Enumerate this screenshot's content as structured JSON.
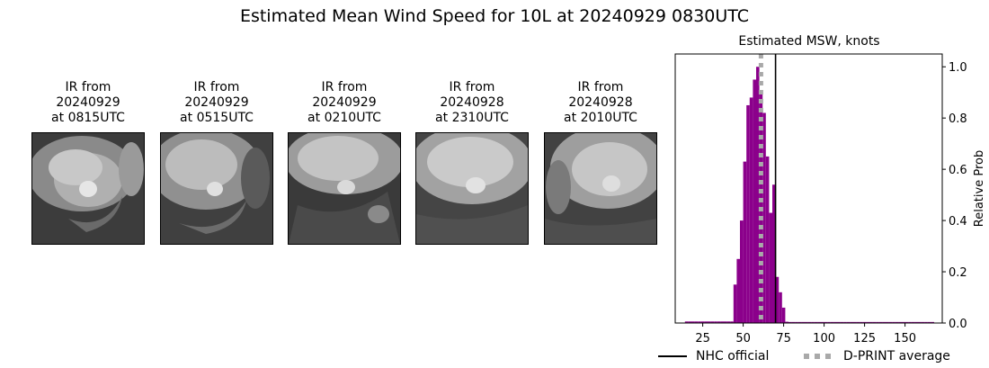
{
  "figure": {
    "title": "Estimated Mean Wind Speed for 10L at 20240929 0830UTC"
  },
  "ir_panels": [
    {
      "line1": "IR from",
      "line2": "20240929",
      "line3": "at 0815UTC"
    },
    {
      "line1": "IR from",
      "line2": "20240929",
      "line3": "at 0515UTC"
    },
    {
      "line1": "IR from",
      "line2": "20240929",
      "line3": "at 0210UTC"
    },
    {
      "line1": "IR from",
      "line2": "20240928",
      "line3": "at 2310UTC"
    },
    {
      "line1": "IR from",
      "line2": "20240928",
      "line3": "at 2010UTC"
    }
  ],
  "chart_data": {
    "type": "bar",
    "title": "Estimated MSW, knots",
    "xlabel": "",
    "ylabel": "Relative Prob",
    "xlim": [
      8,
      173
    ],
    "ylim": [
      0,
      1.05
    ],
    "xticks": [
      25,
      50,
      75,
      100,
      125,
      150
    ],
    "yticks": [
      0.0,
      0.2,
      0.4,
      0.6,
      0.8,
      1.0
    ],
    "ytick_labels": [
      "0.0",
      "0.2",
      "0.4",
      "0.6",
      "0.8",
      "1.0"
    ],
    "y_axis_side": "right",
    "bar_color": "#8b008b",
    "bin_width": 2,
    "bins": [
      {
        "x": 15,
        "y": 0.006
      },
      {
        "x": 17,
        "y": 0.006
      },
      {
        "x": 19,
        "y": 0.006
      },
      {
        "x": 21,
        "y": 0.006
      },
      {
        "x": 23,
        "y": 0.006
      },
      {
        "x": 25,
        "y": 0.006
      },
      {
        "x": 27,
        "y": 0.006
      },
      {
        "x": 29,
        "y": 0.006
      },
      {
        "x": 31,
        "y": 0.006
      },
      {
        "x": 33,
        "y": 0.006
      },
      {
        "x": 35,
        "y": 0.006
      },
      {
        "x": 37,
        "y": 0.006
      },
      {
        "x": 39,
        "y": 0.006
      },
      {
        "x": 41,
        "y": 0.006
      },
      {
        "x": 43,
        "y": 0.006
      },
      {
        "x": 45,
        "y": 0.15
      },
      {
        "x": 47,
        "y": 0.25
      },
      {
        "x": 49,
        "y": 0.4
      },
      {
        "x": 51,
        "y": 0.63
      },
      {
        "x": 53,
        "y": 0.85
      },
      {
        "x": 55,
        "y": 0.88
      },
      {
        "x": 57,
        "y": 0.95
      },
      {
        "x": 59,
        "y": 1.0
      },
      {
        "x": 61,
        "y": 0.9
      },
      {
        "x": 63,
        "y": 0.82
      },
      {
        "x": 65,
        "y": 0.65
      },
      {
        "x": 67,
        "y": 0.43
      },
      {
        "x": 69,
        "y": 0.54
      },
      {
        "x": 71,
        "y": 0.18
      },
      {
        "x": 73,
        "y": 0.12
      },
      {
        "x": 75,
        "y": 0.06
      },
      {
        "x": 77,
        "y": 0.005
      },
      {
        "x": 79,
        "y": 0.004
      },
      {
        "x": 81,
        "y": 0.004
      },
      {
        "x": 83,
        "y": 0.004
      },
      {
        "x": 85,
        "y": 0.004
      },
      {
        "x": 87,
        "y": 0.004
      },
      {
        "x": 89,
        "y": 0.004
      },
      {
        "x": 91,
        "y": 0.004
      },
      {
        "x": 93,
        "y": 0.004
      },
      {
        "x": 95,
        "y": 0.004
      },
      {
        "x": 97,
        "y": 0.004
      },
      {
        "x": 99,
        "y": 0.004
      },
      {
        "x": 101,
        "y": 0.004
      },
      {
        "x": 103,
        "y": 0.004
      },
      {
        "x": 105,
        "y": 0.004
      },
      {
        "x": 107,
        "y": 0.004
      },
      {
        "x": 109,
        "y": 0.004
      },
      {
        "x": 111,
        "y": 0.004
      },
      {
        "x": 113,
        "y": 0.004
      },
      {
        "x": 115,
        "y": 0.004
      },
      {
        "x": 117,
        "y": 0.004
      },
      {
        "x": 119,
        "y": 0.004
      },
      {
        "x": 121,
        "y": 0.004
      },
      {
        "x": 123,
        "y": 0.004
      },
      {
        "x": 125,
        "y": 0.004
      },
      {
        "x": 127,
        "y": 0.004
      },
      {
        "x": 129,
        "y": 0.004
      },
      {
        "x": 131,
        "y": 0.004
      },
      {
        "x": 133,
        "y": 0.004
      },
      {
        "x": 135,
        "y": 0.004
      },
      {
        "x": 137,
        "y": 0.004
      },
      {
        "x": 139,
        "y": 0.004
      },
      {
        "x": 141,
        "y": 0.004
      },
      {
        "x": 143,
        "y": 0.004
      },
      {
        "x": 145,
        "y": 0.004
      },
      {
        "x": 147,
        "y": 0.004
      },
      {
        "x": 149,
        "y": 0.004
      },
      {
        "x": 151,
        "y": 0.004
      },
      {
        "x": 153,
        "y": 0.004
      },
      {
        "x": 155,
        "y": 0.004
      },
      {
        "x": 157,
        "y": 0.004
      },
      {
        "x": 159,
        "y": 0.004
      },
      {
        "x": 161,
        "y": 0.004
      },
      {
        "x": 163,
        "y": 0.004
      },
      {
        "x": 165,
        "y": 0.004
      },
      {
        "x": 167,
        "y": 0.004
      }
    ],
    "vertical_lines": [
      {
        "name": "NHC official",
        "x": 70,
        "color": "#000000",
        "style": "solid"
      },
      {
        "name": "D-PRINT average",
        "x": 61,
        "color": "#a9a9a9",
        "style": "dotted"
      }
    ],
    "legend": {
      "placement": "bottom",
      "entries": [
        {
          "label": "NHC official",
          "color": "#000000",
          "style": "solid"
        },
        {
          "label": "D-PRINT average",
          "color": "#a9a9a9",
          "style": "dotted"
        }
      ]
    },
    "grid": false
  }
}
